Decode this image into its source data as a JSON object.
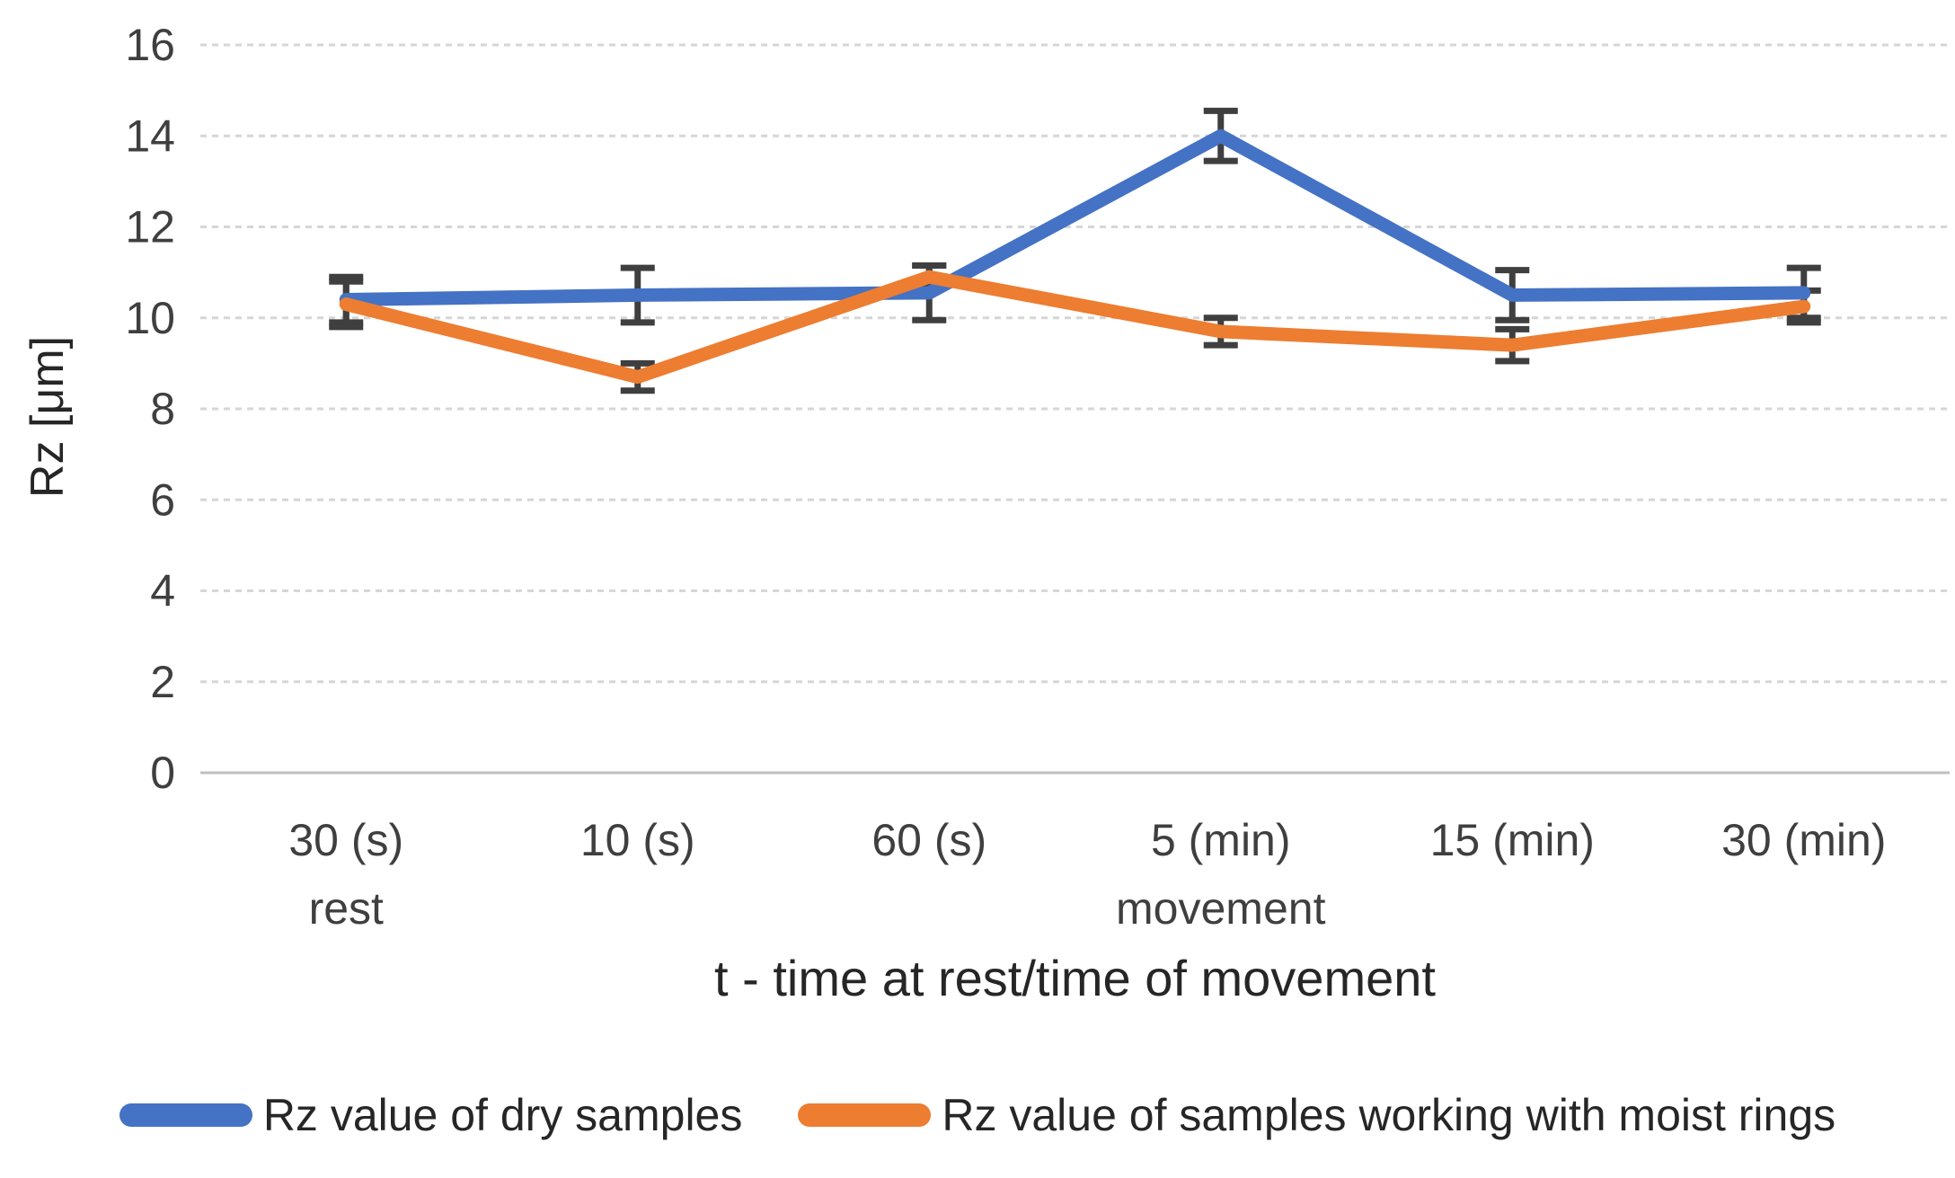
{
  "chart_data": {
    "type": "line",
    "xlabel": "t - time at rest/time of movement",
    "ylabel": "Rz [μm]",
    "categories": [
      "30 (s)",
      "10 (s)",
      "60 (s)",
      "5 (min)",
      "15 (min)",
      "30 (min)"
    ],
    "category_sublabels": [
      "rest",
      "",
      "",
      "movement",
      "",
      ""
    ],
    "yticks": [
      0,
      2,
      4,
      6,
      8,
      10,
      12,
      14,
      16
    ],
    "ylim": [
      0,
      16
    ],
    "grid": "horizontal-dashed",
    "legend_position": "bottom",
    "error_bar_color": "#3f3f3f",
    "gridline_color": "#d6d6d6",
    "axis_line_color": "#bfbfbf",
    "series": [
      {
        "name": "Rz value of dry samples",
        "color": "#4472c4",
        "values": [
          10.4,
          10.5,
          10.55,
          14.0,
          10.5,
          10.55
        ],
        "errors": [
          0.5,
          0.6,
          0.6,
          0.55,
          0.55,
          0.55
        ]
      },
      {
        "name": "Rz value of samples working with moist rings",
        "color": "#ed7d31",
        "values": [
          10.3,
          8.7,
          10.9,
          9.7,
          9.4,
          10.25
        ],
        "errors": [
          0.5,
          0.3,
          0.25,
          0.3,
          0.35,
          0.35
        ]
      }
    ]
  }
}
